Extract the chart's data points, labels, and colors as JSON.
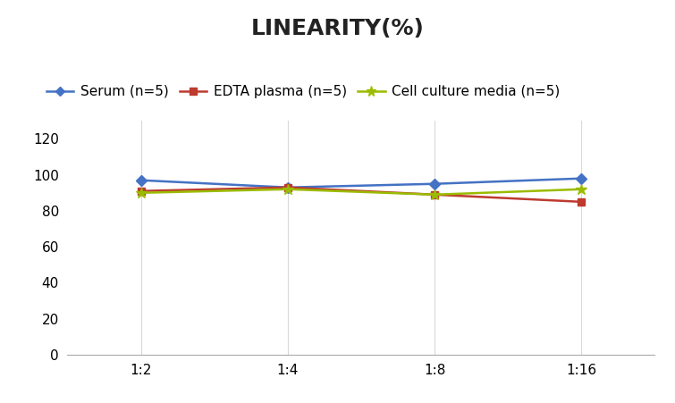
{
  "title": "LINEARITY(%)",
  "x_labels": [
    "1:2",
    "1:4",
    "1:8",
    "1:16"
  ],
  "x_positions": [
    0,
    1,
    2,
    3
  ],
  "series": [
    {
      "label": "Serum (n=5)",
      "values": [
        97,
        93,
        95,
        98
      ],
      "color": "#4472C4",
      "marker": "D",
      "markersize": 6,
      "linewidth": 1.8
    },
    {
      "label": "EDTA plasma (n=5)",
      "values": [
        91,
        93,
        89,
        85
      ],
      "color": "#BE3A2E",
      "marker": "s",
      "markersize": 6,
      "linewidth": 1.8
    },
    {
      "label": "Cell culture media (n=5)",
      "values": [
        90,
        92,
        89,
        92
      ],
      "color": "#9BBB00",
      "marker": "*",
      "markersize": 9,
      "linewidth": 1.8
    }
  ],
  "ylim": [
    0,
    130
  ],
  "yticks": [
    0,
    20,
    40,
    60,
    80,
    100,
    120
  ],
  "grid_color": "#D9D9D9",
  "background_color": "#FFFFFF",
  "title_fontsize": 18,
  "tick_fontsize": 11,
  "legend_fontsize": 11
}
